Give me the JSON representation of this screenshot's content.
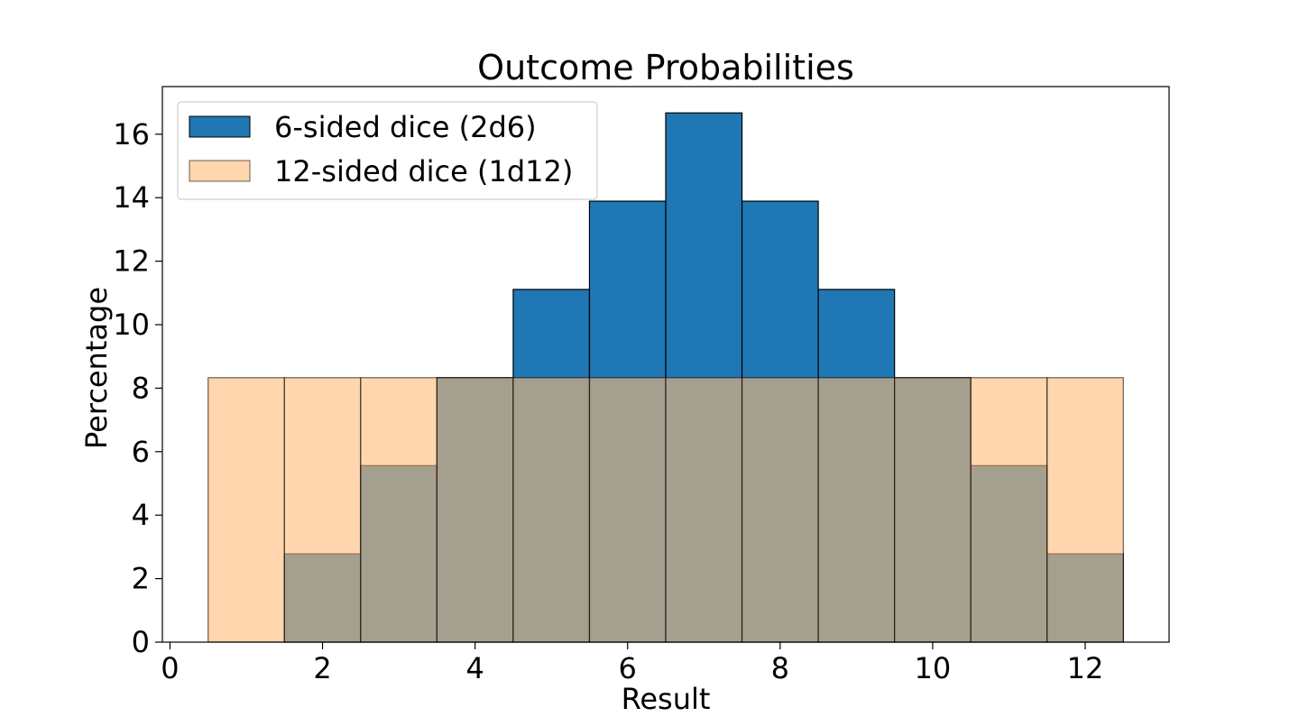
{
  "chart_data": {
    "type": "bar",
    "title": "Outcome Probabilities",
    "xlabel": "Result",
    "ylabel": "Percentage",
    "xlim": [
      -0.1,
      13.1
    ],
    "ylim": [
      0,
      17.5
    ],
    "xticks": [
      0,
      2,
      4,
      6,
      8,
      10,
      12
    ],
    "yticks": [
      0,
      2,
      4,
      6,
      8,
      10,
      12,
      14,
      16
    ],
    "bar_width": 1,
    "grid": false,
    "legend_position": "top-left",
    "series": [
      {
        "name": "6-sided dice (2d6)",
        "color": "#1f77b4",
        "opacity": 1,
        "x": [
          2,
          3,
          4,
          5,
          6,
          7,
          8,
          9,
          10,
          11,
          12
        ],
        "values": [
          2.78,
          5.56,
          8.33,
          11.11,
          13.89,
          16.67,
          13.89,
          11.11,
          8.33,
          5.56,
          2.78
        ]
      },
      {
        "name": "12-sided dice (1d12)",
        "color": "#ffbb78",
        "opacity": 0.6,
        "x": [
          1,
          2,
          3,
          4,
          5,
          6,
          7,
          8,
          9,
          10,
          11,
          12
        ],
        "values": [
          8.33,
          8.33,
          8.33,
          8.33,
          8.33,
          8.33,
          8.33,
          8.33,
          8.33,
          8.33,
          8.33,
          8.33
        ]
      }
    ]
  }
}
